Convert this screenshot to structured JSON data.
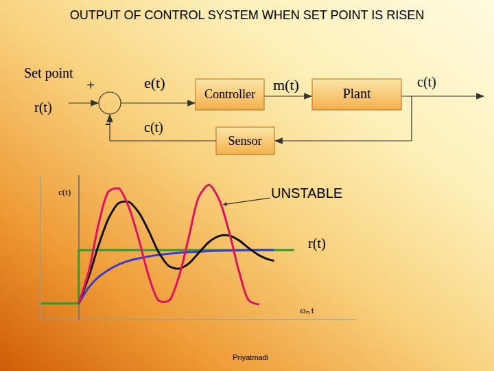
{
  "title": "OUTPUT OF CONTROL SYSTEM WHEN SET POINT IS RISEN",
  "footer": "Priyatmadi",
  "diagram": {
    "input": {
      "label": "Set point",
      "signal": "r(t)"
    },
    "summing_junction": {
      "plus": "+",
      "minus": "-"
    },
    "error": "e(t)",
    "feedback": "c(t)",
    "controller": "Controller",
    "manipulated": "m(t)",
    "plant": "Plant",
    "output": "c(t)",
    "sensor": "Sensor"
  },
  "chart_data": {
    "type": "line",
    "xlabel": "ωₙ t",
    "ylabel": "c(t)",
    "xlim": [
      -1.5,
      11.1
    ],
    "ylim": [
      -0.3,
      2.4
    ],
    "tick_labels": false,
    "grid": false,
    "series": [
      {
        "color": "#2e9a2e",
        "x": [
          -1.5,
          0,
          0,
          8.6
        ],
        "values": [
          0,
          0,
          1,
          1
        ]
      },
      {
        "color": "#3a3acc",
        "x": [
          0,
          0.4,
          0.8,
          1.2,
          1.6,
          2.0,
          2.8,
          3.6,
          4.4,
          5.2,
          6.0,
          7.0,
          7.8
        ],
        "values": [
          0,
          0.3,
          0.5,
          0.63,
          0.73,
          0.8,
          0.88,
          0.93,
          0.96,
          0.98,
          0.99,
          1.0,
          1.0
        ]
      },
      {
        "color": "#111111",
        "x": [
          0,
          0.4,
          0.8,
          1.2,
          1.6,
          2.0,
          2.4,
          2.8,
          3.2,
          3.6,
          4.0,
          4.4,
          4.8,
          5.2,
          5.6,
          6.0,
          6.4,
          6.8,
          7.2,
          7.6,
          7.8
        ],
        "values": [
          0,
          0.5,
          1.1,
          1.6,
          1.88,
          1.9,
          1.7,
          1.35,
          0.95,
          0.7,
          0.65,
          0.75,
          0.95,
          1.15,
          1.26,
          1.27,
          1.18,
          1.03,
          0.9,
          0.82,
          0.8
        ]
      },
      {
        "color": "#e0115f",
        "x": [
          0,
          0.4,
          0.8,
          1.2,
          1.6,
          2.0,
          2.4,
          2.8,
          3.2,
          3.6,
          4.0,
          4.4,
          4.8,
          5.2,
          5.6,
          6.0,
          6.4,
          6.8,
          7.2
        ],
        "values": [
          0,
          0.6,
          1.5,
          2.1,
          2.15,
          1.8,
          1.2,
          0.5,
          0.05,
          0.05,
          0.5,
          1.25,
          2.0,
          2.22,
          1.95,
          1.35,
          0.6,
          0.05,
          -0.02
        ]
      }
    ],
    "annotations": [
      {
        "text": "UNSTABLE"
      },
      {
        "text": "r(t)"
      }
    ]
  }
}
